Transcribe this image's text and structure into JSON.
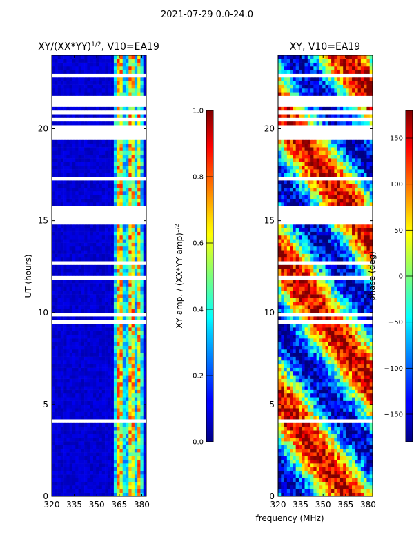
{
  "figure_title": "2021-07-29 0.0-24.0",
  "xlabel": "frequency (MHz)",
  "ylabel": "UT (hours)",
  "chart_data": [
    {
      "type": "heatmap",
      "title": "XY/(XX*YY)^1/2, V10=EA19",
      "title_main": "XY/(XX*YY)",
      "title_exp": "1/2",
      "title_suffix": ", V10=EA19",
      "xlabel": "frequency (MHz)",
      "ylabel": "UT (hours)",
      "xlim": [
        320,
        383
      ],
      "ylim": [
        0,
        24
      ],
      "xticks": [
        320,
        335,
        350,
        365,
        380
      ],
      "yticks": [
        0,
        5,
        10,
        15,
        20
      ],
      "colorbar": {
        "label": "XY amp. / (XX*YY amp)^1/2",
        "label_main": "XY amp. / (XX*YY amp)",
        "label_exp": "1/2",
        "range": [
          0.0,
          1.0
        ],
        "ticks": [
          "0.0",
          "0.2",
          "0.4",
          "0.6",
          "0.8",
          "1.0"
        ],
        "cmap": "jet"
      },
      "flagged_time_ranges_h": [
        [
          15.1,
          15.8
        ],
        [
          19.4,
          20.2
        ],
        [
          21.2,
          21.8
        ]
      ],
      "bright_channel_bands_mhz": [
        [
          364,
          368
        ],
        [
          371,
          375
        ],
        [
          377,
          380
        ]
      ]
    },
    {
      "type": "heatmap",
      "title": "XY, V10=EA19",
      "xlabel": "frequency (MHz)",
      "ylabel": "UT (hours)",
      "xlim": [
        320,
        383
      ],
      "ylim": [
        0,
        24
      ],
      "xticks": [
        320,
        335,
        350,
        365,
        380
      ],
      "yticks": [
        0,
        5,
        10,
        15,
        20
      ],
      "colorbar": {
        "label": "phase (deg)",
        "range": [
          -180,
          180
        ],
        "ticks": [
          "-150",
          "-100",
          "-50",
          "0",
          "50",
          "100",
          "150"
        ],
        "cmap": "jet"
      },
      "flagged_time_ranges_h": [
        [
          15.1,
          15.8
        ],
        [
          19.4,
          20.2
        ],
        [
          21.2,
          21.8
        ]
      ]
    }
  ]
}
